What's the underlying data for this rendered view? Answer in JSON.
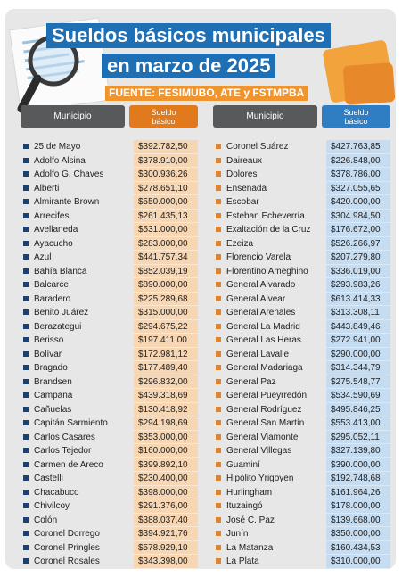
{
  "header": {
    "title_line1": "Sueldos básicos municipales",
    "title_line2": "en marzo de 2025",
    "source": "FUENTE: FESIMUBO, ATE y FSTMPBA"
  },
  "columns": {
    "municipio": "Municipio",
    "sueldo_line1": "Sueldo",
    "sueldo_line2": "básico"
  },
  "colors": {
    "title_bg": "#1f6fb5",
    "source_bg": "#f0952d",
    "left_accent": "#e07a1d",
    "right_accent": "#2f7dc2"
  },
  "left": [
    {
      "municipio": "25 de Mayo",
      "sueldo": "$392.782,50"
    },
    {
      "municipio": "Adolfo Alsina",
      "sueldo": "$378.910,00"
    },
    {
      "municipio": "Adolfo G. Chaves",
      "sueldo": "$300.936,26"
    },
    {
      "municipio": "Alberti",
      "sueldo": "$278.651,10"
    },
    {
      "municipio": "Almirante Brown",
      "sueldo": "$550.000,00"
    },
    {
      "municipio": "Arrecifes",
      "sueldo": "$261.435,13"
    },
    {
      "municipio": "Avellaneda",
      "sueldo": "$531.000,00"
    },
    {
      "municipio": "Ayacucho",
      "sueldo": "$283.000,00"
    },
    {
      "municipio": "Azul",
      "sueldo": "$441.757,34"
    },
    {
      "municipio": "Bahía Blanca",
      "sueldo": "$852.039,19"
    },
    {
      "municipio": "Balcarce",
      "sueldo": "$890.000,00"
    },
    {
      "municipio": "Baradero",
      "sueldo": "$225.289,68"
    },
    {
      "municipio": "Benito Juárez",
      "sueldo": "$315.000,00"
    },
    {
      "municipio": "Berazategui",
      "sueldo": "$294.675,22"
    },
    {
      "municipio": "Berisso",
      "sueldo": "$197.411,00"
    },
    {
      "municipio": "Bolívar",
      "sueldo": "$172.981,12"
    },
    {
      "municipio": "Bragado",
      "sueldo": "$177.489,40"
    },
    {
      "municipio": "Brandsen",
      "sueldo": "$296.832,00"
    },
    {
      "municipio": "Campana",
      "sueldo": "$439.318,69"
    },
    {
      "municipio": "Cañuelas",
      "sueldo": "$130.418,92"
    },
    {
      "municipio": "Capitán Sarmiento",
      "sueldo": "$294.198,69"
    },
    {
      "municipio": "Carlos Casares",
      "sueldo": "$353.000,00"
    },
    {
      "municipio": "Carlos Tejedor",
      "sueldo": "$160.000,00"
    },
    {
      "municipio": "Carmen de Areco",
      "sueldo": "$399.892,10"
    },
    {
      "municipio": "Castelli",
      "sueldo": "$230.400,00"
    },
    {
      "municipio": "Chacabuco",
      "sueldo": "$398.000,00"
    },
    {
      "municipio": "Chivilcoy",
      "sueldo": "$291.376,00"
    },
    {
      "municipio": "Colón",
      "sueldo": "$388.037,40"
    },
    {
      "municipio": "Coronel Dorrego",
      "sueldo": "$394.921,76"
    },
    {
      "municipio": "Coronel Pringles",
      "sueldo": "$578.929,10"
    },
    {
      "municipio": "Coronel Rosales",
      "sueldo": "$343.398,00"
    }
  ],
  "right": [
    {
      "municipio": "Coronel Suárez",
      "sueldo": "$427.763,85"
    },
    {
      "municipio": "Daireaux",
      "sueldo": "$226.848,00"
    },
    {
      "municipio": "Dolores",
      "sueldo": "$378.786,00"
    },
    {
      "municipio": "Ensenada",
      "sueldo": "$327.055,65"
    },
    {
      "municipio": "Escobar",
      "sueldo": "$420.000,00"
    },
    {
      "municipio": "Esteban Echeverría",
      "sueldo": "$304.984,50"
    },
    {
      "municipio": "Exaltación de la Cruz",
      "sueldo": "$176.672,00"
    },
    {
      "municipio": "Ezeiza",
      "sueldo": "$526.266,97"
    },
    {
      "municipio": "Florencio Varela",
      "sueldo": "$207.279,80"
    },
    {
      "municipio": "Florentino Ameghino",
      "sueldo": "$336.019,00"
    },
    {
      "municipio": "General Alvarado",
      "sueldo": "$293.983,26"
    },
    {
      "municipio": "General Alvear",
      "sueldo": "$613.414,33"
    },
    {
      "municipio": "General Arenales",
      "sueldo": "$313.308,11"
    },
    {
      "municipio": "General La Madrid",
      "sueldo": "$443.849,46"
    },
    {
      "municipio": "General Las Heras",
      "sueldo": "$272.941,00"
    },
    {
      "municipio": "General Lavalle",
      "sueldo": "$290.000,00"
    },
    {
      "municipio": "General Madariaga",
      "sueldo": "$314.344,79"
    },
    {
      "municipio": "General Paz",
      "sueldo": "$275.548,77"
    },
    {
      "municipio": "General Pueyrredón",
      "sueldo": "$534.590,69"
    },
    {
      "municipio": "General Rodríguez",
      "sueldo": "$495.846,25"
    },
    {
      "municipio": "General San Martín",
      "sueldo": "$553.413,00"
    },
    {
      "municipio": "General Viamonte",
      "sueldo": "$295.052,11"
    },
    {
      "municipio": "General Villegas",
      "sueldo": "$327.139,80"
    },
    {
      "municipio": "Guaminí",
      "sueldo": "$390.000,00"
    },
    {
      "municipio": "Hipólito Yrigoyen",
      "sueldo": "$192.748,68"
    },
    {
      "municipio": "Hurlingham",
      "sueldo": "$161.964,26"
    },
    {
      "municipio": "Ituzaingó",
      "sueldo": "$178.000,00"
    },
    {
      "municipio": "José C. Paz",
      "sueldo": "$139.668,00"
    },
    {
      "municipio": "Junín",
      "sueldo": "$350.000,00"
    },
    {
      "municipio": "La Matanza",
      "sueldo": "$160.434,53"
    },
    {
      "municipio": "La Plata",
      "sueldo": "$310.000,00"
    }
  ]
}
